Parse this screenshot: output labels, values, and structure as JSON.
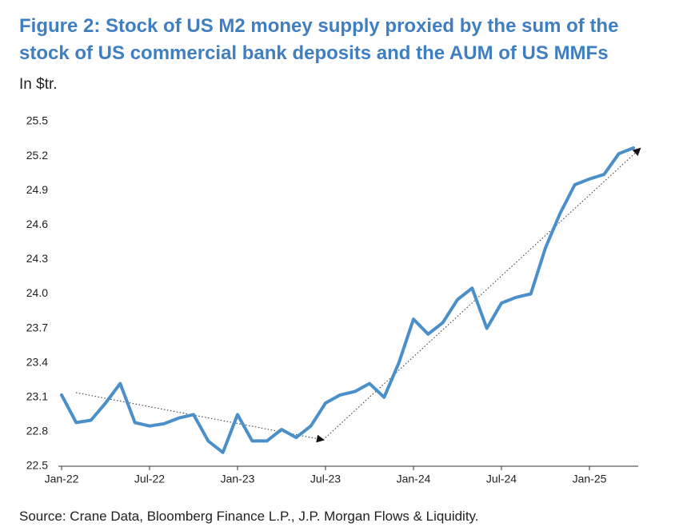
{
  "chart_data": {
    "type": "line",
    "title": "Figure 2: Stock of US M2 money supply proxied by the sum of the",
    "title_line2": "stock of US commercial bank deposits and the AUM of US MMFs",
    "subtitle": "In $tr.",
    "source": "Source: Crane Data, Bloomberg Finance L.P., J.P. Morgan Flows & Liquidity.",
    "categories": [
      "Jan-22",
      null,
      null,
      null,
      null,
      null,
      "Jul-22",
      null,
      null,
      null,
      null,
      null,
      "Jan-23",
      null,
      null,
      null,
      null,
      null,
      "Jul-23",
      null,
      null,
      null,
      null,
      null,
      "Jan-24",
      null,
      null,
      null,
      null,
      null,
      "Jul-24",
      null,
      null,
      null,
      null,
      null,
      "Jan-25",
      null,
      null,
      null
    ],
    "values": [
      23.12,
      22.88,
      22.9,
      23.05,
      23.22,
      22.88,
      22.85,
      22.87,
      22.92,
      22.95,
      22.72,
      22.62,
      22.95,
      22.72,
      22.72,
      22.82,
      22.75,
      22.85,
      23.05,
      23.12,
      23.15,
      23.22,
      23.1,
      23.4,
      23.78,
      23.65,
      23.75,
      23.95,
      24.05,
      23.7,
      23.92,
      23.97,
      24.0,
      24.4,
      24.7,
      24.95,
      25.0,
      25.04,
      25.22,
      25.27
    ],
    "color": "#4a8fc9",
    "ylim": [
      22.5,
      25.5
    ],
    "yticks": [
      22.5,
      22.8,
      23.1,
      23.4,
      23.7,
      {
        "value": 24,
        "label": "24.0"
      },
      24.3,
      24.6,
      24.9,
      25.2,
      25.5
    ],
    "grid": false
  }
}
